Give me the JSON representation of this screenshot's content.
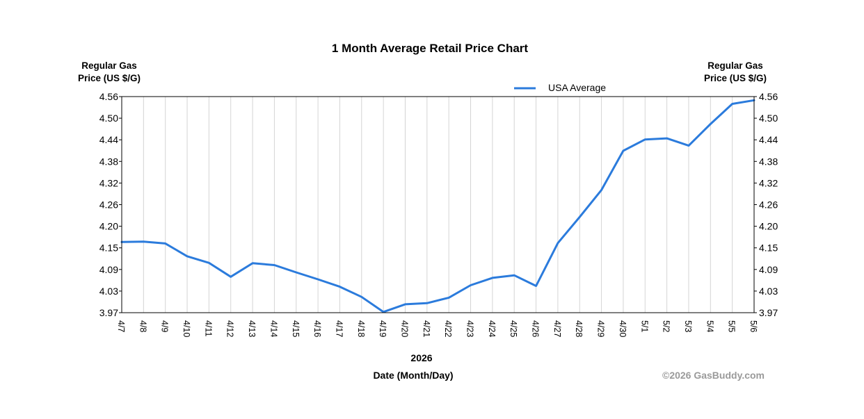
{
  "chart_data": {
    "type": "line",
    "title": "1 Month Average Retail Price Chart",
    "ylabel_left": [
      "Regular Gas",
      "Price (US $/G)"
    ],
    "ylabel_right": [
      "Regular Gas",
      "Price (US $/G)"
    ],
    "xlabel_year": "2026",
    "xlabel": "Date (Month/Day)",
    "copyright": "©2026 GasBuddy.com",
    "ylim": [
      3.97,
      4.56
    ],
    "yticks": [
      "4.56",
      "4.50",
      "4.44",
      "4.38",
      "4.32",
      "4.26",
      "4.20",
      "4.15",
      "4.09",
      "4.03",
      "3.97"
    ],
    "grid": "vertical",
    "legend_position": "top-right",
    "categories": [
      "4/7",
      "4/8",
      "4/9",
      "4/10",
      "4/11",
      "4/12",
      "4/13",
      "4/14",
      "4/15",
      "4/16",
      "4/17",
      "4/18",
      "4/19",
      "4/20",
      "4/21",
      "4/22",
      "4/23",
      "4/24",
      "4/25",
      "4/26",
      "4/27",
      "4/28",
      "4/29",
      "4/30",
      "5/1",
      "5/2",
      "5/3",
      "5/4",
      "5/5",
      "5/6"
    ],
    "series": [
      {
        "name": "USA Average",
        "color": "#2b7bdc",
        "values": [
          4.163,
          4.164,
          4.159,
          4.124,
          4.106,
          4.068,
          4.105,
          4.1,
          4.08,
          4.061,
          4.041,
          4.013,
          3.972,
          3.993,
          3.996,
          4.011,
          4.045,
          4.065,
          4.072,
          4.043,
          4.16,
          4.231,
          4.305,
          4.412,
          4.443,
          4.446,
          4.426,
          4.485,
          4.54,
          4.55
        ]
      }
    ]
  }
}
